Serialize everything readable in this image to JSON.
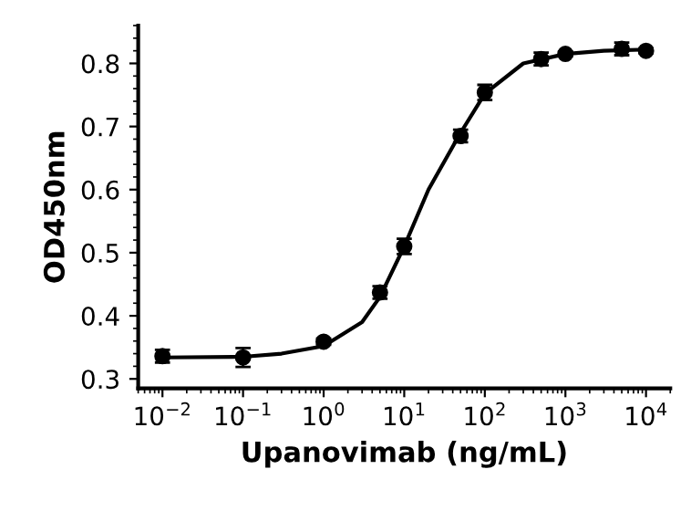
{
  "chart_data": {
    "type": "scatter",
    "xlabel": "Upanovimab (ng/mL)",
    "ylabel": "OD450nm",
    "log": "x",
    "xlim": [
      0.005,
      20000
    ],
    "ylim": [
      0.285,
      0.86
    ],
    "xticks": [
      {
        "value": 0.01,
        "label": "10$^{−2}$"
      },
      {
        "value": 0.1,
        "label": "10$^{−1}$"
      },
      {
        "value": 1,
        "label": "10$^{0}$"
      },
      {
        "value": 10,
        "label": "10$^{1}$"
      },
      {
        "value": 100,
        "label": "10$^{2}$"
      },
      {
        "value": 1000,
        "label": "10$^{3}$"
      },
      {
        "value": 10000,
        "label": "10$^{4}$"
      }
    ],
    "yticks": [
      0.3,
      0.4,
      0.5,
      0.6,
      0.7,
      0.8
    ],
    "grid": false,
    "legend": false,
    "series": [
      {
        "marker": "circle",
        "color": "#000000",
        "x": [
          0.01,
          0.1,
          1,
          5,
          10,
          50,
          100,
          500,
          1000,
          5000,
          10000
        ],
        "values": [
          0.336,
          0.334,
          0.359,
          0.437,
          0.51,
          0.685,
          0.754,
          0.807,
          0.815,
          0.823,
          0.82
        ],
        "errors": [
          0.01,
          0.015,
          0.005,
          0.01,
          0.012,
          0.01,
          0.012,
          0.01,
          0.004,
          0.01,
          0.004
        ]
      },
      {
        "type": "line",
        "marker": "none",
        "color": "#000000",
        "line_style": "solid",
        "x": [
          0.01,
          0.1,
          0.3,
          1,
          3,
          5,
          10,
          20,
          50,
          100,
          300,
          1000,
          3000,
          10000
        ],
        "values": [
          0.334,
          0.335,
          0.34,
          0.352,
          0.39,
          0.43,
          0.51,
          0.6,
          0.69,
          0.752,
          0.8,
          0.815,
          0.82,
          0.822
        ]
      }
    ]
  }
}
